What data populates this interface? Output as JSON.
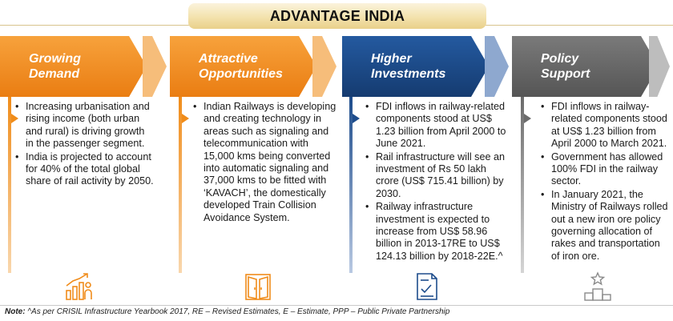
{
  "title": "ADVANTAGE INDIA",
  "colors": {
    "orange": "#f08c1a",
    "navy": "#1d4c8c",
    "gray": "#6c6c6c"
  },
  "columns": [
    {
      "heading_line1": "Growing",
      "heading_line2": "Demand",
      "icon": "growth-chart-people-icon",
      "bullets": [
        "Increasing urbanisation and rising income (both urban and rural) is driving growth in the passenger segment.",
        "India is projected to account for 40% of the total global share of rail activity by 2050."
      ]
    },
    {
      "heading_line1": "Attractive",
      "heading_line2": "Opportunities",
      "icon": "open-door-icon",
      "bullets": [
        "Indian Railways is developing and creating technology in areas such as signaling and telecommunication with 15,000 kms being converted into automatic signaling and 37,000 kms to be fitted with ‘KAVACH’, the domestically developed Train Collision Avoidance System."
      ]
    },
    {
      "heading_line1": "Higher",
      "heading_line2": "Investments",
      "icon": "certificate-document-icon",
      "bullets": [
        "FDI inflows in railway-related components stood at US$ 1.23 billion from April 2000 to June 2021.",
        "Rail infrastructure will see an investment of Rs 50 lakh crore (US$ 715.41 billion) by 2030.",
        "Railway infrastructure investment is expected to increase from US$ 58.96 billion in 2013-17RE to US$ 124.13 billion by 2018-22E.^"
      ]
    },
    {
      "heading_line1": "Policy",
      "heading_line2": "Support",
      "icon": "podium-star-icon",
      "bullets": [
        "FDI inflows in railway-related components stood at US$ 1.23 billion from April 2000 to March 2021.",
        "Government has allowed 100% FDI in the railway sector.",
        "In January 2021, the Ministry of Railways rolled out a new iron ore policy governing allocation of rakes and transportation of iron ore."
      ]
    }
  ],
  "note_label": "Note:",
  "note_text": " ^As per CRISIL Infrastructure Yearbook 2017, RE – Revised Estimates, E – Estimate, PPP – Public Private Partnership"
}
